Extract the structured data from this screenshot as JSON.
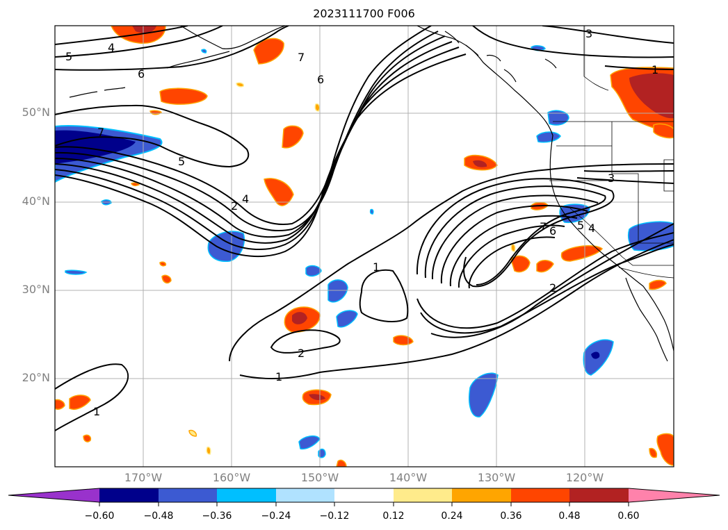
{
  "title": "2023111700 F006",
  "map": {
    "lat_labels": [
      "50°N",
      "40°N",
      "30°N",
      "20°N"
    ],
    "lon_labels": [
      "170°W",
      "160°W",
      "150°W",
      "140°W",
      "130°W",
      "120°W"
    ],
    "contour_labels": [
      "5",
      "4",
      "6",
      "7",
      "5",
      "4",
      "2",
      "6",
      "7",
      "3",
      "1",
      "3",
      "7",
      "6",
      "5",
      "4",
      "1",
      "2",
      "1",
      "2",
      "1"
    ]
  },
  "colorbar": {
    "tick_labels": [
      "−0.60",
      "−0.48",
      "−0.36",
      "−0.24",
      "−0.12",
      "0.12",
      "0.24",
      "0.36",
      "0.48",
      "0.60"
    ],
    "colors": [
      "#9932cc",
      "#00008b",
      "#3c5ad2",
      "#00bfff",
      "#b0e2ff",
      "#ffffff",
      "#ffeb8b",
      "#ffa500",
      "#ff4500",
      "#b22222",
      "#ff82ab"
    ]
  }
}
